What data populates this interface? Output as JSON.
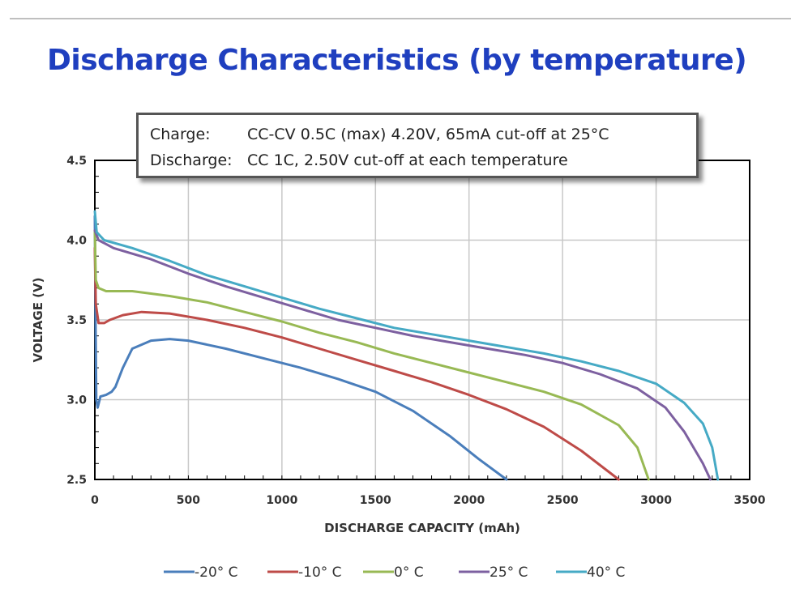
{
  "page": {
    "title": "Discharge Characteristics (by temperature)"
  },
  "note": {
    "lines": [
      {
        "label": "Charge:",
        "text": "CC-CV 0.5C (max) 4.20V, 65mA cut-off at 25°C"
      },
      {
        "label": "Discharge:",
        "text": "CC 1C, 2.50V cut-off at each temperature"
      }
    ]
  },
  "colors": {
    "-20": "#4a7ebb",
    "-10": "#be4b48",
    "0": "#98b954",
    "25": "#7d60a0",
    "40": "#46aac5",
    "grid": "#c8c8c8",
    "axis": "#000000"
  },
  "chart_data": {
    "type": "line",
    "title": "",
    "xlabel": "DISCHARGE CAPACITY (mAh)",
    "ylabel": "VOLTAGE (V)",
    "xlim": [
      0,
      3500
    ],
    "ylim": [
      2.5,
      4.5
    ],
    "x_ticks": [
      0,
      500,
      1000,
      1500,
      2000,
      2500,
      3000,
      3500
    ],
    "y_ticks": [
      2.5,
      3.0,
      3.5,
      4.0,
      4.5
    ],
    "x_tick_labels": [
      "0",
      "500",
      "1000",
      "1500",
      "2000",
      "2500",
      "3000",
      "3500"
    ],
    "y_tick_labels": [
      "2.5",
      "3.0",
      "3.5",
      "4.0",
      "4.5"
    ],
    "grid": true,
    "legend_position": "bottom",
    "series": [
      {
        "name": "-20° C",
        "color_key": "-20",
        "points": [
          [
            0,
            4.15
          ],
          [
            3,
            3.6
          ],
          [
            8,
            3.0
          ],
          [
            15,
            2.95
          ],
          [
            30,
            3.02
          ],
          [
            60,
            3.03
          ],
          [
            90,
            3.05
          ],
          [
            110,
            3.08
          ],
          [
            150,
            3.2
          ],
          [
            200,
            3.32
          ],
          [
            300,
            3.37
          ],
          [
            400,
            3.38
          ],
          [
            500,
            3.37
          ],
          [
            700,
            3.32
          ],
          [
            900,
            3.26
          ],
          [
            1100,
            3.2
          ],
          [
            1300,
            3.13
          ],
          [
            1500,
            3.05
          ],
          [
            1700,
            2.93
          ],
          [
            1900,
            2.77
          ],
          [
            2050,
            2.63
          ],
          [
            2200,
            2.5
          ]
        ]
      },
      {
        "name": "-10° C",
        "color_key": "-10",
        "points": [
          [
            0,
            3.95
          ],
          [
            5,
            3.6
          ],
          [
            20,
            3.48
          ],
          [
            50,
            3.48
          ],
          [
            80,
            3.5
          ],
          [
            150,
            3.53
          ],
          [
            250,
            3.55
          ],
          [
            400,
            3.54
          ],
          [
            600,
            3.5
          ],
          [
            800,
            3.45
          ],
          [
            1000,
            3.39
          ],
          [
            1200,
            3.32
          ],
          [
            1400,
            3.25
          ],
          [
            1600,
            3.18
          ],
          [
            1800,
            3.11
          ],
          [
            2000,
            3.03
          ],
          [
            2200,
            2.94
          ],
          [
            2400,
            2.83
          ],
          [
            2600,
            2.68
          ],
          [
            2800,
            2.5
          ]
        ]
      },
      {
        "name": "0° C",
        "color_key": "0",
        "points": [
          [
            0,
            4.05
          ],
          [
            5,
            3.75
          ],
          [
            20,
            3.7
          ],
          [
            60,
            3.68
          ],
          [
            200,
            3.68
          ],
          [
            400,
            3.65
          ],
          [
            600,
            3.61
          ],
          [
            800,
            3.55
          ],
          [
            1000,
            3.49
          ],
          [
            1200,
            3.42
          ],
          [
            1400,
            3.36
          ],
          [
            1600,
            3.29
          ],
          [
            1800,
            3.23
          ],
          [
            2000,
            3.17
          ],
          [
            2200,
            3.11
          ],
          [
            2400,
            3.05
          ],
          [
            2600,
            2.97
          ],
          [
            2800,
            2.84
          ],
          [
            2900,
            2.7
          ],
          [
            2960,
            2.5
          ]
        ]
      },
      {
        "name": "25° C",
        "color_key": "25",
        "points": [
          [
            0,
            4.06
          ],
          [
            20,
            4.0
          ],
          [
            100,
            3.95
          ],
          [
            300,
            3.88
          ],
          [
            500,
            3.79
          ],
          [
            700,
            3.71
          ],
          [
            900,
            3.64
          ],
          [
            1100,
            3.57
          ],
          [
            1300,
            3.5
          ],
          [
            1500,
            3.45
          ],
          [
            1700,
            3.4
          ],
          [
            1900,
            3.36
          ],
          [
            2100,
            3.32
          ],
          [
            2300,
            3.28
          ],
          [
            2500,
            3.23
          ],
          [
            2700,
            3.16
          ],
          [
            2900,
            3.07
          ],
          [
            3050,
            2.95
          ],
          [
            3150,
            2.8
          ],
          [
            3250,
            2.6
          ],
          [
            3290,
            2.5
          ]
        ]
      },
      {
        "name": "40° C",
        "color_key": "40",
        "points": [
          [
            0,
            4.18
          ],
          [
            10,
            4.05
          ],
          [
            50,
            4.0
          ],
          [
            200,
            3.95
          ],
          [
            400,
            3.87
          ],
          [
            600,
            3.78
          ],
          [
            800,
            3.71
          ],
          [
            1000,
            3.64
          ],
          [
            1200,
            3.57
          ],
          [
            1400,
            3.51
          ],
          [
            1600,
            3.45
          ],
          [
            1800,
            3.41
          ],
          [
            2000,
            3.37
          ],
          [
            2200,
            3.33
          ],
          [
            2400,
            3.29
          ],
          [
            2600,
            3.24
          ],
          [
            2800,
            3.18
          ],
          [
            3000,
            3.1
          ],
          [
            3150,
            2.98
          ],
          [
            3250,
            2.85
          ],
          [
            3300,
            2.7
          ],
          [
            3330,
            2.5
          ]
        ]
      }
    ]
  }
}
